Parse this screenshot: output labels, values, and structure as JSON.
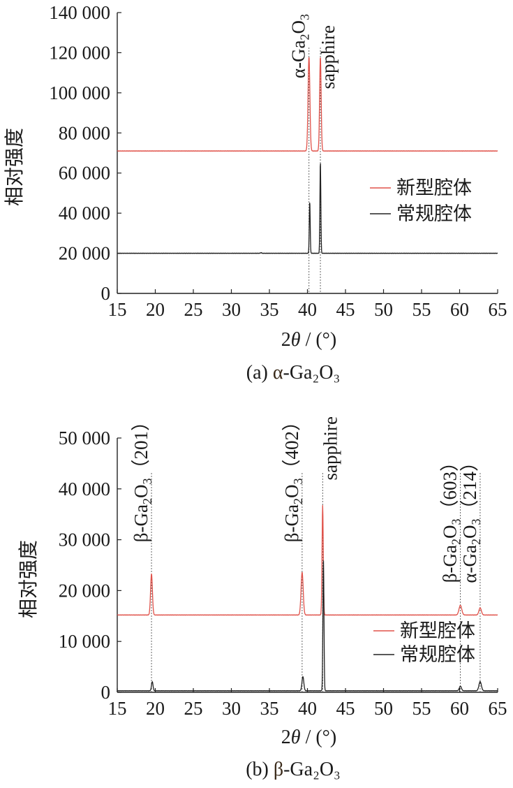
{
  "chart_data": [
    {
      "type": "line",
      "caption_label": "(a)",
      "caption_greek": "α",
      "caption_formula": "-Ga₂O₃",
      "xlabel_prefix": "2",
      "xlabel_theta": "θ",
      "xlabel_suffix": " / (°)",
      "ylabel": "相对强度",
      "xlim": [
        15,
        65
      ],
      "ylim": [
        0,
        140000
      ],
      "xticks": [
        15,
        20,
        25,
        30,
        35,
        40,
        45,
        50,
        55,
        60,
        65
      ],
      "yticks": [
        0,
        20000,
        40000,
        60000,
        80000,
        100000,
        120000,
        140000
      ],
      "ytick_labels": [
        "0",
        "20 000",
        "40 000",
        "60 000",
        "80 000",
        "100 000",
        "120 000",
        "140 000"
      ],
      "legend_position": "right",
      "series": [
        {
          "name": "新型腔体",
          "color": "#e0524a",
          "baseline": 71000,
          "peaks": [
            {
              "x": 40.2,
              "y": 118000,
              "w": 0.12
            },
            {
              "x": 41.7,
              "y": 118000,
              "w": 0.1
            }
          ]
        },
        {
          "name": "常规腔体",
          "color": "#222222",
          "baseline": 20000,
          "peaks": [
            {
              "x": 40.3,
              "y": 46000,
              "w": 0.06
            },
            {
              "x": 41.7,
              "y": 66000,
              "w": 0.06
            },
            {
              "x": 33.9,
              "y": 20300,
              "w": 0.08
            }
          ]
        }
      ],
      "annotations": [
        {
          "x": 40.2,
          "parts": [
            [
              "α",
              ""
            ],
            [
              "-Ga",
              ""
            ],
            [
              "2",
              "sub"
            ],
            [
              "O",
              ""
            ],
            [
              "3",
              "sub"
            ]
          ]
        },
        {
          "x": 41.7,
          "parts": [
            [
              "sapphire",
              ""
            ]
          ]
        }
      ],
      "guide_lines": [
        40.2,
        41.7
      ]
    },
    {
      "type": "line",
      "caption_label": "(b)",
      "caption_greek": "β",
      "caption_formula": "-Ga₂O₃",
      "xlabel_prefix": "2",
      "xlabel_theta": "θ",
      "xlabel_suffix": " / (°)",
      "ylabel": "相对强度",
      "xlim": [
        15,
        65
      ],
      "ylim": [
        0,
        50000
      ],
      "xticks": [
        15,
        20,
        25,
        30,
        35,
        40,
        45,
        50,
        55,
        60,
        65
      ],
      "yticks": [
        0,
        10000,
        20000,
        30000,
        40000,
        50000
      ],
      "ytick_labels": [
        "0",
        "10 000",
        "20 000",
        "30 000",
        "40 000",
        "50 000"
      ],
      "legend_position": "bottom-right",
      "series": [
        {
          "name": "新型腔体",
          "color": "#e0524a",
          "baseline": 15200,
          "peaks": [
            {
              "x": 19.5,
              "y": 23300,
              "w": 0.12
            },
            {
              "x": 39.3,
              "y": 23600,
              "w": 0.14
            },
            {
              "x": 42.0,
              "y": 36800,
              "w": 0.08
            },
            {
              "x": 60.1,
              "y": 17100,
              "w": 0.18
            },
            {
              "x": 62.7,
              "y": 16600,
              "w": 0.16
            }
          ]
        },
        {
          "name": "常规腔体",
          "color": "#222222",
          "baseline": 300,
          "peaks": [
            {
              "x": 19.6,
              "y": 2100,
              "w": 0.1
            },
            {
              "x": 39.4,
              "y": 3100,
              "w": 0.12
            },
            {
              "x": 42.1,
              "y": 26000,
              "w": 0.07
            },
            {
              "x": 60.1,
              "y": 1200,
              "w": 0.14
            },
            {
              "x": 62.7,
              "y": 2100,
              "w": 0.16
            }
          ]
        }
      ],
      "annotations": [
        {
          "x": 19.5,
          "parts": [
            [
              "β",
              ""
            ],
            [
              "-Ga",
              ""
            ],
            [
              "2",
              "sub"
            ],
            [
              "O",
              ""
            ],
            [
              "3",
              "sub"
            ],
            [
              "（201）",
              ""
            ]
          ]
        },
        {
          "x": 39.3,
          "parts": [
            [
              "β",
              ""
            ],
            [
              "-Ga",
              ""
            ],
            [
              "2",
              "sub"
            ],
            [
              "O",
              ""
            ],
            [
              "3",
              "sub"
            ],
            [
              "（402）",
              ""
            ]
          ]
        },
        {
          "x": 42.0,
          "parts": [
            [
              "sapphire",
              ""
            ]
          ]
        },
        {
          "x": 60.1,
          "parts": [
            [
              "β",
              ""
            ],
            [
              "-Ga",
              ""
            ],
            [
              "2",
              "sub"
            ],
            [
              "O",
              ""
            ],
            [
              "3",
              "sub"
            ],
            [
              "（603）",
              ""
            ]
          ]
        },
        {
          "x": 62.7,
          "parts": [
            [
              "α",
              ""
            ],
            [
              "-Ga",
              ""
            ],
            [
              "2",
              "sub"
            ],
            [
              "O",
              ""
            ],
            [
              "3",
              "sub"
            ],
            [
              "（214）",
              ""
            ]
          ]
        }
      ],
      "guide_lines": [
        19.5,
        39.3,
        42.0,
        60.1,
        62.7
      ]
    }
  ]
}
